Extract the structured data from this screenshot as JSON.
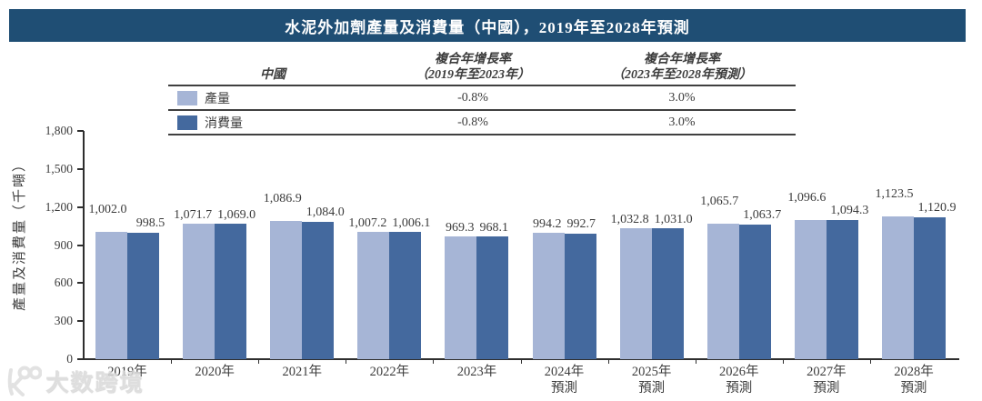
{
  "title": "水泥外加劑產量及消費量（中國），2019年至2028年預測",
  "colors": {
    "title_bar_bg": "#1f4e74",
    "production": "#a6b5d6",
    "consumption": "#44699e",
    "axis": "#2e2e2e",
    "text": "#3c3c3c"
  },
  "legend_table": {
    "region_header": "中國",
    "cagr1_header_line1": "複合年增長率",
    "cagr1_header_line2": "（2019年至2023年）",
    "cagr2_header_line1": "複合年增長率",
    "cagr2_header_line2": "（2023年至2028年預測）",
    "rows": [
      {
        "label": "產量",
        "cagr_2019_2023": "-0.8%",
        "cagr_2023_2028": "3.0%",
        "color": "#a6b5d6"
      },
      {
        "label": "消費量",
        "cagr_2019_2023": "-0.8%",
        "cagr_2023_2028": "3.0%",
        "color": "#44699e"
      }
    ]
  },
  "chart_data": {
    "type": "bar",
    "title": "水泥外加劑產量及消費量（中國），2019年至2028年預測",
    "xlabel": "",
    "ylabel": "產量及消費量（千噸）",
    "ylim": [
      0,
      1800
    ],
    "y_tick_step": 300,
    "y_tick_labels": [
      "0",
      "300",
      "600",
      "900",
      "1,200",
      "1,500",
      "1,800"
    ],
    "grid": false,
    "legend_position": "table-top",
    "data_labels": true,
    "categories": [
      {
        "year": "2019年",
        "sub": ""
      },
      {
        "year": "2020年",
        "sub": ""
      },
      {
        "year": "2021年",
        "sub": ""
      },
      {
        "year": "2022年",
        "sub": ""
      },
      {
        "year": "2023年",
        "sub": ""
      },
      {
        "year": "2024年",
        "sub": "預測"
      },
      {
        "year": "2025年",
        "sub": "預測"
      },
      {
        "year": "2026年",
        "sub": "預測"
      },
      {
        "year": "2027年",
        "sub": "預測"
      },
      {
        "year": "2028年",
        "sub": "預測"
      }
    ],
    "series": [
      {
        "name": "產量",
        "color": "#a6b5d6",
        "values": [
          1002.0,
          1071.7,
          1086.9,
          1007.2,
          969.3,
          994.2,
          1032.8,
          1065.7,
          1096.6,
          1123.5
        ],
        "value_labels": [
          "1,002.0",
          "1,071.7",
          "1,086.9",
          "1,007.2",
          "969.3",
          "994.2",
          "1,032.8",
          "1,065.7",
          "1,096.6",
          "1,123.5"
        ]
      },
      {
        "name": "消費量",
        "color": "#44699e",
        "values": [
          998.5,
          1069.0,
          1084.0,
          1006.1,
          968.1,
          992.7,
          1031.0,
          1063.7,
          1094.3,
          1120.9
        ],
        "value_labels": [
          "998.5",
          "1,069.0",
          "1,084.0",
          "1,006.1",
          "968.1",
          "992.7",
          "1,031.0",
          "1,063.7",
          "1,094.3",
          "1,120.9"
        ]
      }
    ],
    "label_stagger_indices": [
      0,
      2,
      7,
      8,
      9
    ]
  },
  "watermark": {
    "logo": "k100-logo",
    "text": "大数跨境"
  }
}
